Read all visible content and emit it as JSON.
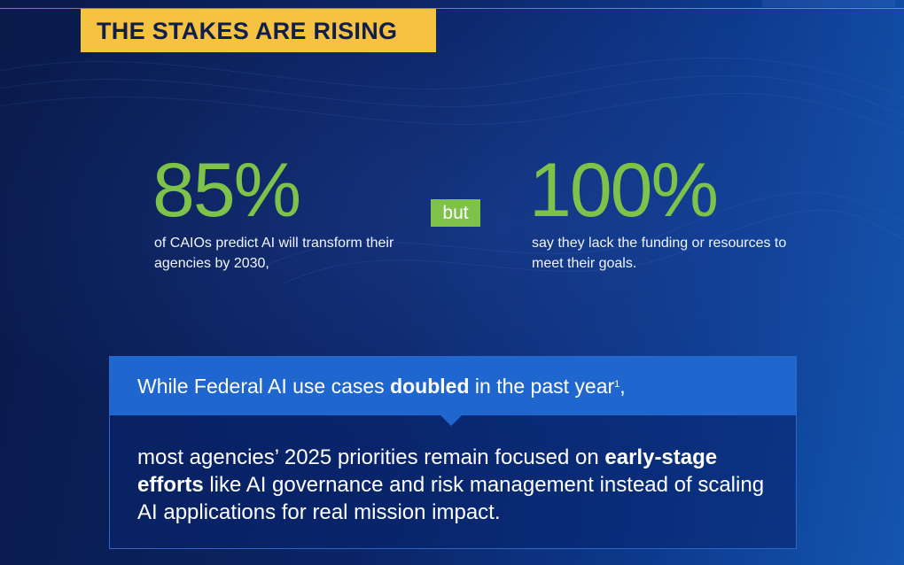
{
  "banner": {
    "title": "THE STAKES ARE RISING"
  },
  "stats": {
    "left": {
      "value": "85%",
      "description": "of CAIOs predict AI will transform their agencies by 2030,"
    },
    "connector": "but",
    "right": {
      "value": "100%",
      "description": "say they lack the funding or resources to meet their goals."
    }
  },
  "callout": {
    "headline": {
      "before": "While Federal AI use cases ",
      "emphasis": "doubled",
      "after": " in the past year",
      "footnote": "1",
      "end": ","
    },
    "body": {
      "before": "most agencies’ 2025 priorities remain focused on ",
      "emphasis": "early-stage efforts",
      "after": " like AI governance and risk management instead of scaling AI applications for real mission impact."
    }
  },
  "colors": {
    "banner_bg": "#f5c242",
    "accent_green": "#7ec24a",
    "callout_header": "#1f66cf",
    "background_dark": "#0a1a4a"
  }
}
